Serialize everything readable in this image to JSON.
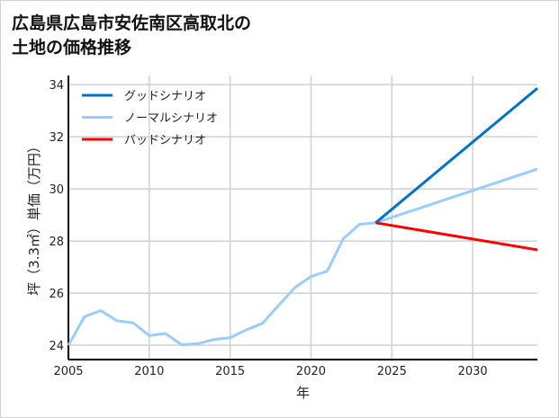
{
  "chart_data": {
    "type": "line",
    "title": "広島県広島市安佐南区高取北の\n土地の価格推移",
    "xlabel": "年",
    "ylabel": "坪（3.3㎡）単価（万円）",
    "xlim": [
      2005,
      2034
    ],
    "ylim": [
      23.45,
      34.35
    ],
    "xticks": [
      2005,
      2010,
      2015,
      2020,
      2025,
      2030
    ],
    "yticks": [
      24,
      26,
      28,
      30,
      32,
      34
    ],
    "grid": true,
    "legend_position": "top-left",
    "series": [
      {
        "name": "グッドシナリオ",
        "color": "#0073cc",
        "x": [
          2024,
          2034
        ],
        "values": [
          28.7,
          33.86
        ]
      },
      {
        "name": "ノーマルシナリオ",
        "color": "#99ccff",
        "x": [
          2005,
          2006,
          2007,
          2008,
          2009,
          2010,
          2011,
          2012,
          2013,
          2014,
          2015,
          2016,
          2017,
          2018,
          2019,
          2020,
          2021,
          2022,
          2023,
          2024,
          2034
        ],
        "values": [
          24.0,
          25.1,
          25.33,
          24.94,
          24.86,
          24.37,
          24.45,
          24.02,
          24.06,
          24.22,
          24.29,
          24.59,
          24.84,
          25.53,
          26.21,
          26.64,
          26.84,
          28.09,
          28.64,
          28.7,
          30.76
        ]
      },
      {
        "name": "バッドシナリオ",
        "color": "#ff0000",
        "x": [
          2024,
          2034
        ],
        "values": [
          28.7,
          27.66
        ]
      }
    ]
  }
}
